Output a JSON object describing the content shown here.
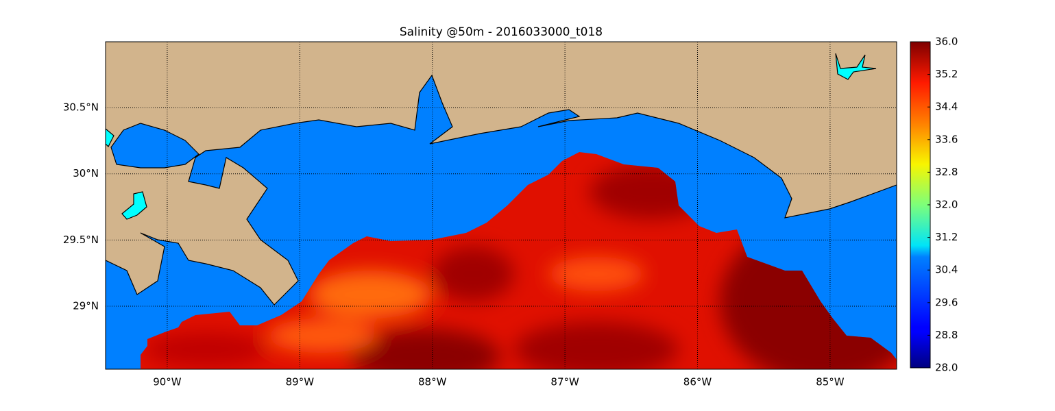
{
  "chart_data": {
    "type": "map",
    "title": "Salinity @50m - 2016033000_t018",
    "xlim": [
      -90.465,
      -84.498
    ],
    "ylim": [
      28.524,
      30.997
    ],
    "xticks": [
      {
        "value": -90,
        "label": "90°W"
      },
      {
        "value": -89,
        "label": "89°W"
      },
      {
        "value": -88,
        "label": "88°W"
      },
      {
        "value": -87,
        "label": "87°W"
      },
      {
        "value": -86,
        "label": "86°W"
      },
      {
        "value": -85,
        "label": "85°W"
      }
    ],
    "yticks": [
      {
        "value": 29,
        "label": "29°N"
      },
      {
        "value": 29.5,
        "label": "29.5°N"
      },
      {
        "value": 30,
        "label": "30°N"
      },
      {
        "value": 30.5,
        "label": "30.5°N"
      }
    ],
    "grid": true,
    "colorbar": {
      "lim": [
        28,
        36
      ],
      "ticks": [
        {
          "value": 28,
          "label": "28.0"
        },
        {
          "value": 28.8,
          "label": "28.8"
        },
        {
          "value": 29.6,
          "label": "29.6"
        },
        {
          "value": 30.4,
          "label": "30.4"
        },
        {
          "value": 31.2,
          "label": "31.2"
        },
        {
          "value": 32,
          "label": "32.0"
        },
        {
          "value": 32.8,
          "label": "32.8"
        },
        {
          "value": 33.6,
          "label": "33.6"
        },
        {
          "value": 34.4,
          "label": "34.4"
        },
        {
          "value": 35.2,
          "label": "35.2"
        },
        {
          "value": 36,
          "label": "36.0"
        }
      ]
    }
  }
}
